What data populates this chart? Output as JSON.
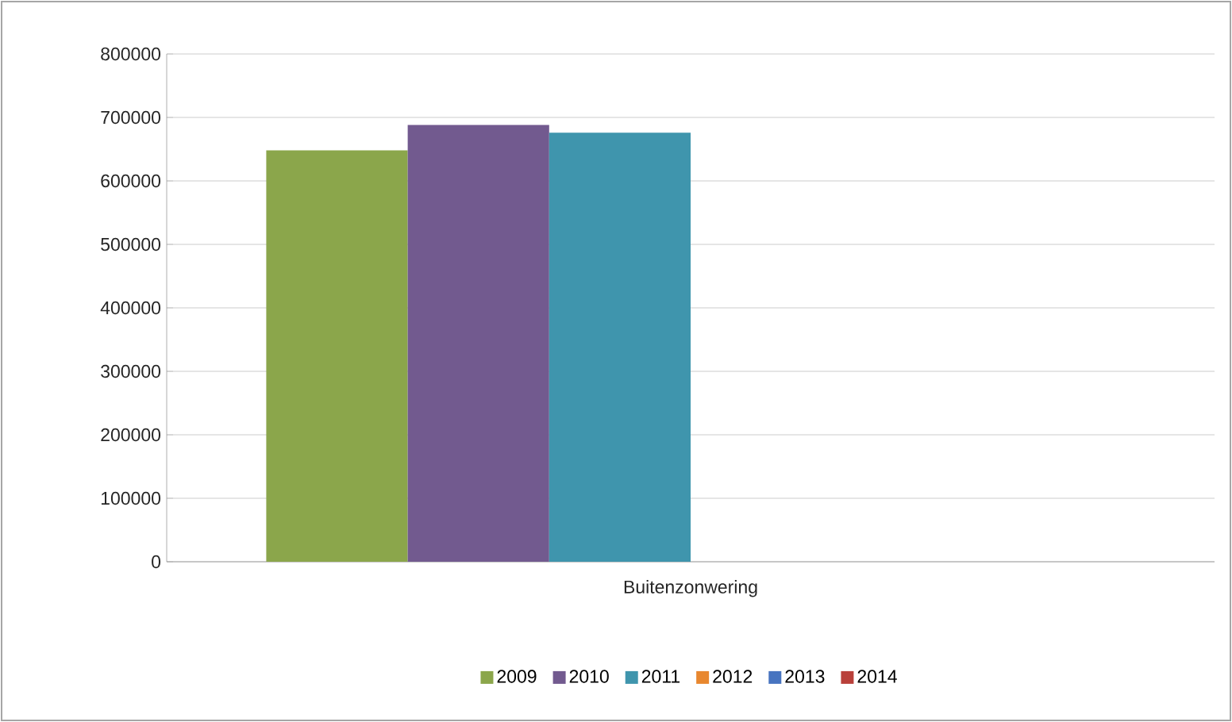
{
  "chart_data": {
    "type": "bar",
    "categories": [
      "Buitenzonwering"
    ],
    "series": [
      {
        "name": "2009",
        "color": "#8ba64b",
        "values": [
          648000
        ]
      },
      {
        "name": "2010",
        "color": "#725a8f",
        "values": [
          688000
        ]
      },
      {
        "name": "2011",
        "color": "#3f95ad",
        "values": [
          676000
        ]
      },
      {
        "name": "2012",
        "color": "#e8872f",
        "values": [
          null
        ]
      },
      {
        "name": "2013",
        "color": "#4774c0",
        "values": [
          null
        ]
      },
      {
        "name": "2014",
        "color": "#b9403a",
        "values": [
          null
        ]
      }
    ],
    "ylim": [
      0,
      800000
    ],
    "yticks": [
      0,
      100000,
      200000,
      300000,
      400000,
      500000,
      600000,
      700000,
      800000
    ],
    "grid": "y",
    "legend": "bottom"
  }
}
